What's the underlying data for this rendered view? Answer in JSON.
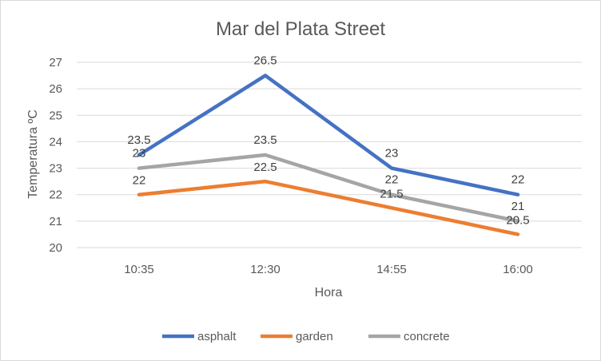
{
  "chart_data": {
    "type": "line",
    "title": "Mar del Plata Street",
    "xlabel": "Hora",
    "ylabel": "Temperatura ºC",
    "categories": [
      "10:35",
      "12:30",
      "14:55",
      "16:00"
    ],
    "ylim": [
      20,
      27
    ],
    "yticks": [
      "20",
      "21",
      "22",
      "23",
      "24",
      "25",
      "26",
      "27"
    ],
    "grid": true,
    "legend_position": "bottom",
    "series": [
      {
        "name": "asphalt",
        "values": [
          23.5,
          26.5,
          23,
          22
        ],
        "labels": [
          "23.5",
          "26.5",
          "23",
          "22"
        ],
        "color": "#4472c4"
      },
      {
        "name": "garden",
        "values": [
          22,
          22.5,
          21.5,
          20.5
        ],
        "labels": [
          "22",
          "22.5",
          "21.5",
          "20.5"
        ],
        "color": "#ed7d31"
      },
      {
        "name": "concrete",
        "values": [
          23,
          23.5,
          22,
          21
        ],
        "labels": [
          "23",
          "23.5",
          "22",
          "21"
        ],
        "color": "#a5a5a5"
      }
    ]
  }
}
